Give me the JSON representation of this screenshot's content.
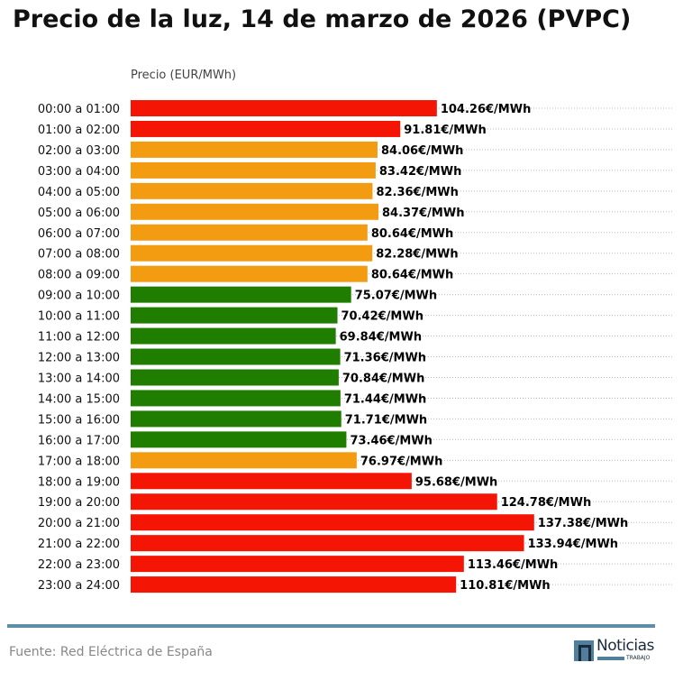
{
  "title": "Precio de la luz, 14 de marzo de 2026 (PVPC)",
  "source": "Fuente: Red Eléctrica de España",
  "logo": {
    "text": "Noticias",
    "subtext": "TRABAJO"
  },
  "colors": {
    "high": "#f51505",
    "mid": "#f39c12",
    "low": "#1f7d00",
    "footer_line": "#5b8fa8"
  },
  "chart_data": {
    "type": "bar",
    "orientation": "horizontal",
    "xlabel": "Precio (EUR/MWh)",
    "xlim": [
      0,
      185
    ],
    "grid": "dotted horizontal",
    "value_suffix": "€/MWh",
    "categories": [
      "00:00 a 01:00",
      "01:00 a 02:00",
      "02:00 a 03:00",
      "03:00 a 04:00",
      "04:00 a 05:00",
      "05:00 a 06:00",
      "06:00 a 07:00",
      "07:00 a 08:00",
      "08:00 a 09:00",
      "09:00 a 10:00",
      "10:00 a 11:00",
      "11:00 a 12:00",
      "12:00 a 13:00",
      "13:00 a 14:00",
      "14:00 a 15:00",
      "15:00 a 16:00",
      "16:00 a 17:00",
      "17:00 a 18:00",
      "18:00 a 19:00",
      "19:00 a 20:00",
      "20:00 a 21:00",
      "21:00 a 22:00",
      "22:00 a 23:00",
      "23:00 a 24:00"
    ],
    "values": [
      104.26,
      91.81,
      84.06,
      83.42,
      82.36,
      84.37,
      80.64,
      82.28,
      80.64,
      75.07,
      70.42,
      69.84,
      71.36,
      70.84,
      71.44,
      71.71,
      73.46,
      76.97,
      95.68,
      124.78,
      137.38,
      133.94,
      113.46,
      110.81
    ],
    "labels": [
      "104.26€/MWh",
      "91.81€/MWh",
      "84.06€/MWh",
      "83.42€/MWh",
      "82.36€/MWh",
      "84.37€/MWh",
      "80.64€/MWh",
      "82.28€/MWh",
      "80.64€/MWh",
      "75.07€/MWh",
      "70.42€/MWh",
      "69.84€/MWh",
      "71.36€/MWh",
      "70.84€/MWh",
      "71.44€/MWh",
      "71.71€/MWh",
      "73.46€/MWh",
      "76.97€/MWh",
      "95.68€/MWh",
      "124.78€/MWh",
      "137.38€/MWh",
      "133.94€/MWh",
      "113.46€/MWh",
      "110.81€/MWh"
    ],
    "bar_colors": [
      "high",
      "high",
      "mid",
      "mid",
      "mid",
      "mid",
      "mid",
      "mid",
      "mid",
      "low",
      "low",
      "low",
      "low",
      "low",
      "low",
      "low",
      "low",
      "mid",
      "high",
      "high",
      "high",
      "high",
      "high",
      "high"
    ]
  }
}
